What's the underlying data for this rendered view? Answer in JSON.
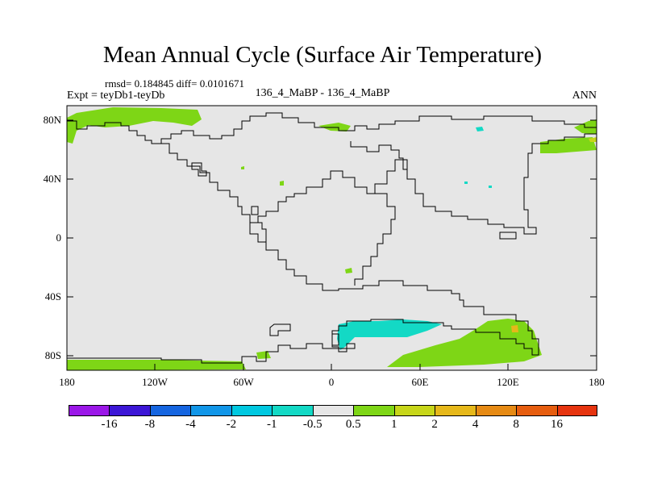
{
  "title": "Mean Annual Cycle (Surface Air Temperature)",
  "stats_text": "rmsd= 0.184845 diff= 0.0101671",
  "expt_text": "Expt = teyDb1-teyDb",
  "center_text": "136_4_MaBP - 136_4_MaBP",
  "season": "ANN",
  "y_ticks": [
    "80N",
    "40N",
    "0",
    "40S",
    "80S"
  ],
  "x_ticks": [
    "180",
    "120W",
    "60W",
    "0",
    "60E",
    "120E",
    "180"
  ],
  "colorbar": {
    "colors": [
      "#9b17e8",
      "#3c16d6",
      "#1565e0",
      "#1196e8",
      "#00c8e0",
      "#13d9c5",
      "#e6e6e6",
      "#7ed616",
      "#c7d619",
      "#e6b81a",
      "#e68a14",
      "#e65d0f",
      "#e6340f"
    ],
    "labels": [
      "-16",
      "-8",
      "-4",
      "-2",
      "-1",
      "-0.5",
      "0.5",
      "1",
      "2",
      "4",
      "8",
      "16"
    ]
  },
  "colors": {
    "background": "#e6e6e6",
    "positive": "#7ed616",
    "negative": "#13d9c5",
    "strong_positive": "#e6b81a"
  }
}
